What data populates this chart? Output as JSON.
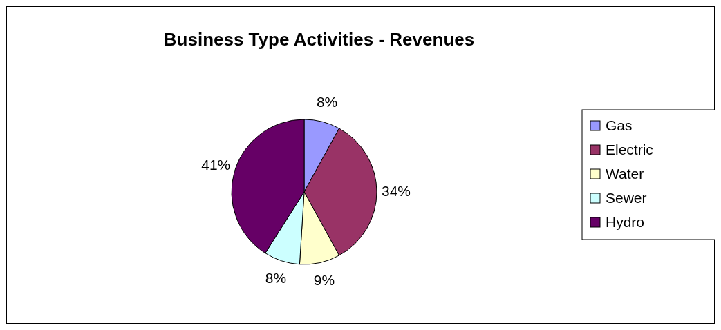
{
  "chart_data": {
    "type": "pie",
    "title": "Business Type Activities - Revenues",
    "categories": [
      "Gas",
      "Electric",
      "Water",
      "Sewer",
      "Hydro"
    ],
    "values": [
      8,
      34,
      9,
      8,
      41
    ],
    "value_labels": [
      "8%",
      "34%",
      "9%",
      "8%",
      "41%"
    ],
    "colors": [
      "#9999ff",
      "#993366",
      "#ffffcc",
      "#ccffff",
      "#660066"
    ],
    "legend": "right"
  }
}
